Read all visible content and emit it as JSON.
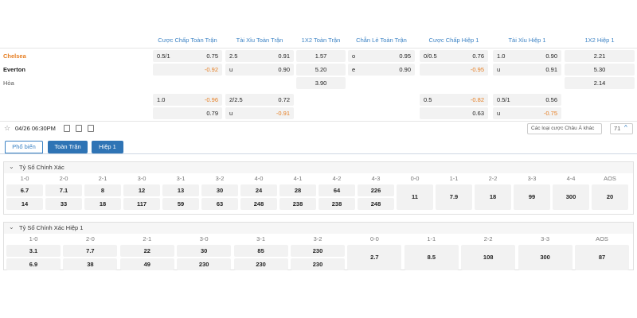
{
  "header": {
    "columns": [
      "Cược Chấp Toàn Trận",
      "Tài Xỉu Toàn Trận",
      "1X2 Toàn Trận",
      "Chẵn Lẻ Toàn Trận",
      "Cược Chấp Hiệp 1",
      "Tài Xỉu Hiệp 1",
      "1X2 Hiệp 1"
    ]
  },
  "teams": [
    "Chelsea",
    "Everton",
    "Hòa"
  ],
  "markets": [
    {
      "kind": "handicap",
      "lines": [
        {
          "line": "0.5/1",
          "home": "0.75",
          "away": "-0.92"
        },
        {
          "line": "1.0",
          "home": "-0.96",
          "away": "0.79"
        }
      ]
    },
    {
      "kind": "total",
      "lines": [
        {
          "line": "2.5",
          "over": "0.91",
          "under_label": "u",
          "under": "0.90"
        },
        {
          "line": "2/2.5",
          "over": "0.72",
          "under_label": "u",
          "under": "-0.91"
        }
      ]
    },
    {
      "kind": "1x2",
      "home": "1.57",
      "away": "5.20",
      "draw": "3.90"
    },
    {
      "kind": "oddeven",
      "odd_label": "o",
      "odd": "0.95",
      "even_label": "e",
      "even": "0.90"
    },
    {
      "kind": "handicap",
      "lines": [
        {
          "line": "0/0.5",
          "home": "0.76",
          "away": "-0.95"
        },
        {
          "line": "0.5",
          "home": "-0.82",
          "away": "0.63"
        }
      ]
    },
    {
      "kind": "total",
      "lines": [
        {
          "line": "1.0",
          "over": "0.90",
          "under_label": "u",
          "under": "0.91"
        },
        {
          "line": "0.5/1",
          "over": "0.56",
          "under_label": "u",
          "under": "-0.75"
        }
      ]
    },
    {
      "kind": "1x2",
      "home": "2.21",
      "away": "5.30",
      "draw": "2.14"
    }
  ],
  "toolbar": {
    "datetime": "04/26 06:30PM",
    "select": "Các loại cược Châu Á khác",
    "count": "71"
  },
  "tabs": [
    "Phổ biến",
    "Toàn Trận",
    "Hiệp 1"
  ],
  "sections": [
    {
      "title": "Tỷ Số Chính Xác",
      "scores": [
        {
          "label": "1-0",
          "odds": [
            "6.7",
            "14"
          ]
        },
        {
          "label": "2-0",
          "odds": [
            "7.1",
            "33"
          ]
        },
        {
          "label": "2-1",
          "odds": [
            "8",
            "18"
          ]
        },
        {
          "label": "3-0",
          "odds": [
            "12",
            "117"
          ]
        },
        {
          "label": "3-1",
          "odds": [
            "13",
            "59"
          ]
        },
        {
          "label": "3-2",
          "odds": [
            "30",
            "63"
          ]
        },
        {
          "label": "4-0",
          "odds": [
            "24",
            "248"
          ]
        },
        {
          "label": "4-1",
          "odds": [
            "28",
            "238"
          ]
        },
        {
          "label": "4-2",
          "odds": [
            "64",
            "238"
          ]
        },
        {
          "label": "4-3",
          "odds": [
            "226",
            "248"
          ]
        },
        {
          "label": "0-0",
          "odds": [
            "11"
          ]
        },
        {
          "label": "1-1",
          "odds": [
            "7.9"
          ]
        },
        {
          "label": "2-2",
          "odds": [
            "18"
          ]
        },
        {
          "label": "3-3",
          "odds": [
            "99"
          ]
        },
        {
          "label": "4-4",
          "odds": [
            "300"
          ]
        },
        {
          "label": "AOS",
          "odds": [
            "20"
          ]
        }
      ]
    },
    {
      "title": "Tỷ Số Chính Xác Hiệp 1",
      "scores": [
        {
          "label": "1-0",
          "odds": [
            "3.1",
            "6.9"
          ]
        },
        {
          "label": "2-0",
          "odds": [
            "7.7",
            "38"
          ]
        },
        {
          "label": "2-1",
          "odds": [
            "22",
            "49"
          ]
        },
        {
          "label": "3-0",
          "odds": [
            "30",
            "230"
          ]
        },
        {
          "label": "3-1",
          "odds": [
            "85",
            "230"
          ]
        },
        {
          "label": "3-2",
          "odds": [
            "230",
            "230"
          ]
        },
        {
          "label": "0-0",
          "odds": [
            "2.7"
          ]
        },
        {
          "label": "1-1",
          "odds": [
            "8.5"
          ]
        },
        {
          "label": "2-2",
          "odds": [
            "108"
          ]
        },
        {
          "label": "3-3",
          "odds": [
            "300"
          ]
        },
        {
          "label": "AOS",
          "odds": [
            "87"
          ]
        }
      ]
    }
  ]
}
